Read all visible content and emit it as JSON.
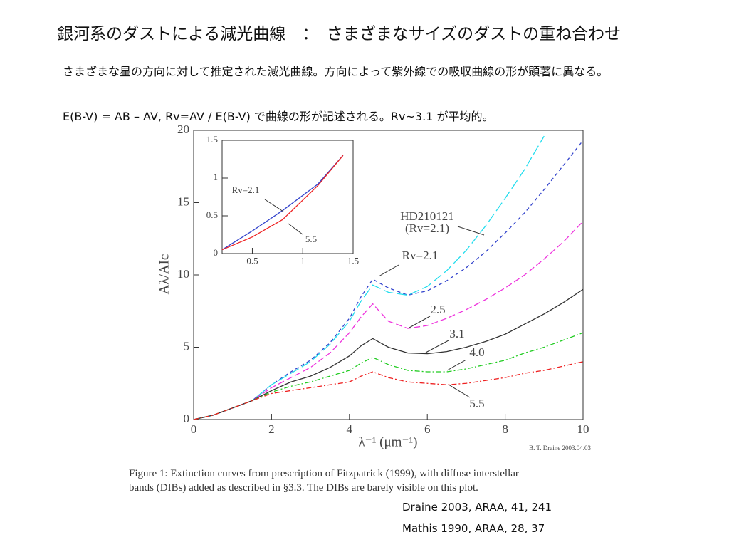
{
  "header": {
    "title": "銀河系のダストによる減光曲線　：　さまざまなサイズのダストの重ね合わせ"
  },
  "paragraphs": [
    "さまざまな星の方向に対して推定された減光曲線。方向によって紫外線での吸収曲線の形が顕著に異なる。",
    "E(B-V) = AB – AV,  Rv=AV / E(B-V) で曲線の形が記述される。Rv~3.1 が平均的。"
  ],
  "chart_data": [
    {
      "type": "line",
      "x_label": "λ⁻¹ (μm⁻¹)",
      "y_label": "Aλ/AIc",
      "credit": "B. T. Draine 2003.04.03",
      "x": [
        0,
        0.5,
        1,
        1.5,
        2,
        2.5,
        3,
        3.5,
        4,
        4.3,
        4.6,
        5,
        5.5,
        6,
        6.5,
        7,
        7.5,
        8,
        8.5,
        9,
        9.5,
        10
      ],
      "xlim": [
        0,
        10
      ],
      "xticks": [
        0,
        2,
        4,
        6,
        8,
        10
      ],
      "ylim": [
        0,
        20
      ],
      "yticks": [
        0,
        5,
        10,
        15,
        20
      ],
      "extra_annotation": "(Rv=2.1)",
      "series": [
        {
          "name": "Rv=2.1",
          "color": "#3344cc",
          "dash": "5,4",
          "values": [
            0,
            0.3,
            0.8,
            1.3,
            2.4,
            3.3,
            4.1,
            5.3,
            7.0,
            8.5,
            9.7,
            9.1,
            8.6,
            8.9,
            9.6,
            10.5,
            11.6,
            12.9,
            14.3,
            15.9,
            17.6,
            19.3
          ]
        },
        {
          "name": "HD210121",
          "color": "#22ddee",
          "dash": "14,5",
          "values": [
            0,
            0.3,
            0.8,
            1.3,
            2.4,
            3.2,
            4.0,
            5.2,
            6.8,
            8.2,
            9.3,
            8.8,
            8.6,
            9.2,
            10.3,
            11.7,
            13.4,
            15.3,
            17.3,
            19.6,
            null,
            null
          ]
        },
        {
          "name": "2.5",
          "color": "#ee33dd",
          "dash": "9,4",
          "values": [
            0,
            0.3,
            0.8,
            1.3,
            2.2,
            2.9,
            3.6,
            4.6,
            6.0,
            7.1,
            8.0,
            6.8,
            6.3,
            6.5,
            7.0,
            7.6,
            8.3,
            9.1,
            10.0,
            11.1,
            12.3,
            13.7
          ]
        },
        {
          "name": "3.1",
          "color": "#333333",
          "dash": "",
          "values": [
            0,
            0.3,
            0.8,
            1.3,
            2.0,
            2.6,
            3.0,
            3.6,
            4.4,
            5.1,
            5.6,
            5.0,
            4.6,
            4.55,
            4.7,
            5.0,
            5.4,
            5.9,
            6.6,
            7.3,
            8.1,
            9.0
          ]
        },
        {
          "name": "4.0",
          "color": "#22cc22",
          "dash": "7,3,2,3",
          "values": [
            0,
            0.3,
            0.8,
            1.3,
            1.9,
            2.3,
            2.6,
            3.0,
            3.4,
            3.9,
            4.3,
            3.8,
            3.4,
            3.3,
            3.3,
            3.5,
            3.8,
            4.1,
            4.6,
            5.0,
            5.5,
            6.0
          ]
        },
        {
          "name": "5.5",
          "color": "#ee2222",
          "dash": "7,3,2,3",
          "values": [
            0,
            0.3,
            0.8,
            1.3,
            1.8,
            2.0,
            2.2,
            2.4,
            2.6,
            3.0,
            3.3,
            2.9,
            2.6,
            2.5,
            2.4,
            2.5,
            2.7,
            2.9,
            3.2,
            3.4,
            3.7,
            4.0
          ]
        }
      ]
    },
    {
      "type": "line",
      "x": [
        0.2,
        0.5,
        0.8,
        1.15,
        1.4
      ],
      "xlim": [
        0.2,
        1.5
      ],
      "xticks": [
        0.5,
        1,
        1.5
      ],
      "ylim": [
        0,
        1.5
      ],
      "yticks": [
        0,
        0.5,
        1,
        1.5
      ],
      "series": [
        {
          "name": "Rv=2.1",
          "color": "#3344cc",
          "dash": "",
          "values": [
            0.05,
            0.3,
            0.57,
            0.92,
            1.3
          ]
        },
        {
          "name": "5.5",
          "color": "#ee2222",
          "dash": "",
          "values": [
            0.05,
            0.22,
            0.45,
            0.9,
            1.3
          ]
        }
      ]
    }
  ],
  "caption": [
    "Figure 1:  Extinction curves from prescription of Fitzpatrick (1999), with diffuse interstellar",
    "bands (DIBs) added as described in §3.3. The DIBs are barely visible on this plot."
  ],
  "references": [
    "Draine 2003, ARAA, 41, 241",
    "Mathis 1990, ARAA, 28, 37"
  ]
}
